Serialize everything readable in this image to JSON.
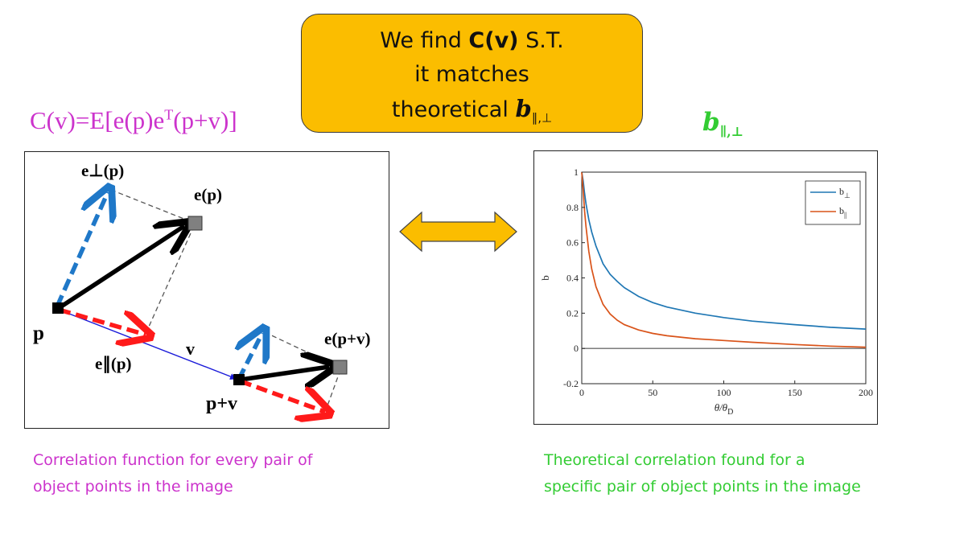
{
  "callout": {
    "line1_pre": "We find ",
    "line1_bold": "C(v)",
    "line1_post": "  S.T.",
    "line2": "it matches",
    "line3_pre": "theoretical ",
    "line3_b": "b",
    "line3_sub": "∥,⊥"
  },
  "formula": {
    "main": "C(v)=E[e(p)e",
    "sup": "T",
    "tail": "(p+v)]"
  },
  "b_title": {
    "b": "b",
    "sub": "∥,⊥"
  },
  "diagram": {
    "labels": {
      "e_perp_p": "e⊥(p)",
      "e_p": "e(p)",
      "p": "p",
      "v": "v",
      "e_par_p": "e∥(p)",
      "p_plus_v": "p+v",
      "e_p_plus_v": "e(p+v)"
    },
    "colors": {
      "perp": "#1f78c8",
      "parallel": "#ff1a1a",
      "vector": "#000000",
      "v_line": "#1a1ad9",
      "square": "#808080"
    }
  },
  "chart_data": {
    "type": "line",
    "xlabel": "θ/θ",
    "xlabel_sub": "D",
    "ylabel": "b",
    "xlim": [
      0,
      200
    ],
    "ylim": [
      -0.2,
      1
    ],
    "xticks": [
      0,
      50,
      100,
      150,
      200
    ],
    "yticks": [
      -0.2,
      0,
      0.2,
      0.4,
      0.6,
      0.8,
      1
    ],
    "legend_position": "top-right",
    "grid": false,
    "series": [
      {
        "name": "b⊥",
        "name_main": "b",
        "name_sub": "⊥",
        "color": "#1f77b4",
        "x": [
          0,
          1,
          2,
          3,
          5,
          7,
          10,
          15,
          20,
          25,
          30,
          40,
          50,
          60,
          80,
          100,
          120,
          150,
          175,
          200
        ],
        "y": [
          1.0,
          0.95,
          0.88,
          0.82,
          0.73,
          0.66,
          0.58,
          0.48,
          0.42,
          0.38,
          0.345,
          0.295,
          0.26,
          0.235,
          0.2,
          0.175,
          0.155,
          0.135,
          0.12,
          0.11
        ]
      },
      {
        "name": "b∥",
        "name_main": "b",
        "name_sub": "||",
        "color": "#d95319",
        "x": [
          0,
          1,
          2,
          3,
          5,
          7,
          10,
          15,
          20,
          25,
          30,
          40,
          50,
          60,
          80,
          100,
          120,
          150,
          175,
          200
        ],
        "y": [
          1.0,
          0.9,
          0.78,
          0.69,
          0.55,
          0.45,
          0.35,
          0.25,
          0.195,
          0.16,
          0.135,
          0.105,
          0.085,
          0.072,
          0.055,
          0.045,
          0.035,
          0.022,
          0.013,
          0.007
        ]
      },
      {
        "name": "",
        "color": "#6e6e6e",
        "x": [
          0,
          200
        ],
        "y": [
          0,
          0
        ]
      }
    ]
  },
  "captions": {
    "left_line1": "Correlation function for every pair of",
    "left_line2": "object points in the image",
    "right_line1": "Theoretical correlation found for a",
    "right_line2": "specific pair of object points in the image"
  }
}
